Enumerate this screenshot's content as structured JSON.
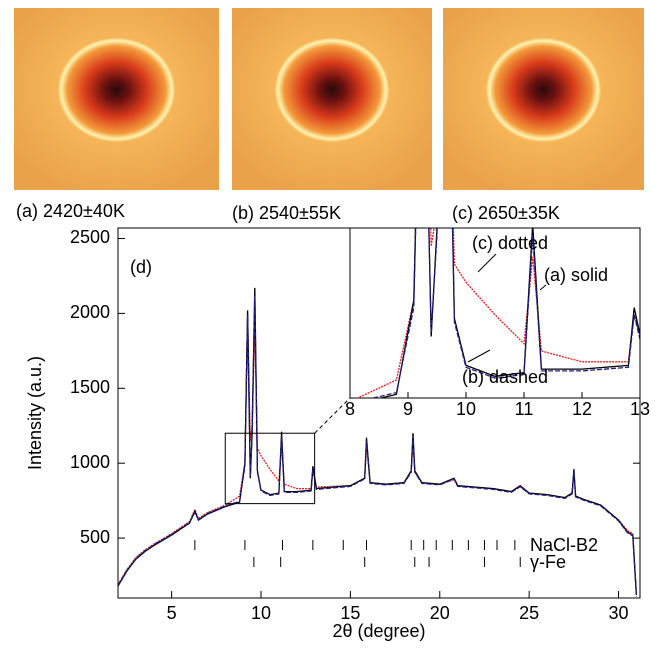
{
  "images": [
    {
      "caption": "(a) 2420±40K"
    },
    {
      "caption": "(b) 2540±55K"
    },
    {
      "caption": "(c) 2650±35K"
    }
  ],
  "chart_data": {
    "type": "line",
    "x_label": "2θ (degree)",
    "y_label": "Intensity (a.u.)",
    "panel_label": "(d)",
    "x": [
      2,
      2.5,
      3,
      3.5,
      4,
      5,
      6,
      6.3,
      6.5,
      7,
      8,
      8.8,
      9.1,
      9.25,
      9.4,
      9.5,
      9.65,
      9.8,
      10,
      10.5,
      11,
      11.15,
      11.3,
      12,
      12.8,
      12.9,
      13.1,
      14,
      15,
      15.8,
      15.9,
      16.1,
      17,
      18,
      18.4,
      18.5,
      18.6,
      19,
      20,
      20.8,
      21,
      22,
      23,
      24,
      24.5,
      25,
      26,
      27,
      27.4,
      27.5,
      27.6,
      28,
      29,
      30,
      30.5,
      30.8,
      31
    ],
    "series": [
      {
        "name": "(c) dotted",
        "color": "#e02020",
        "dash": "2,1",
        "values": [
          190,
          290,
          370,
          420,
          460,
          530,
          610,
          690,
          630,
          670,
          720,
          780,
          1000,
          2000,
          1150,
          1250,
          1900,
          1100,
          1050,
          960,
          880,
          1120,
          860,
          830,
          830,
          960,
          840,
          845,
          850,
          900,
          1120,
          870,
          860,
          870,
          940,
          1150,
          940,
          870,
          860,
          890,
          850,
          840,
          830,
          810,
          840,
          800,
          790,
          770,
          800,
          930,
          780,
          760,
          720,
          620,
          550,
          530,
          130
        ]
      },
      {
        "name": "(a) solid",
        "color": "#000000",
        "dash": "",
        "values": [
          180,
          280,
          360,
          410,
          450,
          520,
          600,
          680,
          620,
          660,
          710,
          740,
          1000,
          2020,
          900,
          1200,
          2170,
          950,
          820,
          790,
          800,
          1210,
          810,
          810,
          820,
          980,
          830,
          840,
          850,
          900,
          1170,
          870,
          860,
          870,
          950,
          1200,
          950,
          870,
          860,
          900,
          850,
          840,
          830,
          810,
          850,
          800,
          790,
          770,
          800,
          960,
          780,
          760,
          720,
          620,
          540,
          520,
          120
        ]
      },
      {
        "name": "(b) dashed",
        "color": "#20208c",
        "dash": "5,2",
        "values": [
          185,
          285,
          365,
          415,
          455,
          525,
          605,
          670,
          625,
          665,
          715,
          745,
          980,
          1990,
          910,
          1180,
          2120,
          940,
          815,
          785,
          795,
          1180,
          805,
          805,
          815,
          960,
          825,
          835,
          845,
          895,
          1150,
          865,
          855,
          865,
          940,
          1180,
          940,
          865,
          855,
          895,
          845,
          835,
          825,
          805,
          845,
          795,
          785,
          765,
          795,
          940,
          775,
          755,
          715,
          615,
          535,
          515,
          110
        ]
      }
    ],
    "xlim": [
      2,
      31.2
    ],
    "ylim": [
      100,
      2570
    ],
    "xticks": [
      5,
      10,
      15,
      20,
      25,
      30
    ],
    "yticks": [
      500,
      1000,
      1500,
      2000,
      2500
    ],
    "reflections": [
      {
        "name": "NaCl-B2",
        "positions": [
          6.3,
          9.1,
          11.2,
          12.9,
          14.6,
          15.9,
          18.4,
          19.1,
          19.8,
          20.7,
          21.6,
          22.5,
          23.2,
          24.2
        ]
      },
      {
        "name": "γ-Fe",
        "positions": [
          9.6,
          11.1,
          15.8,
          18.6,
          19.4,
          22.5,
          24.5
        ]
      }
    ],
    "inset": {
      "xlim": [
        8,
        13
      ],
      "ylim": [
        730,
        1200
      ],
      "xticks": [
        8,
        9,
        10,
        11,
        12,
        13
      ]
    }
  }
}
